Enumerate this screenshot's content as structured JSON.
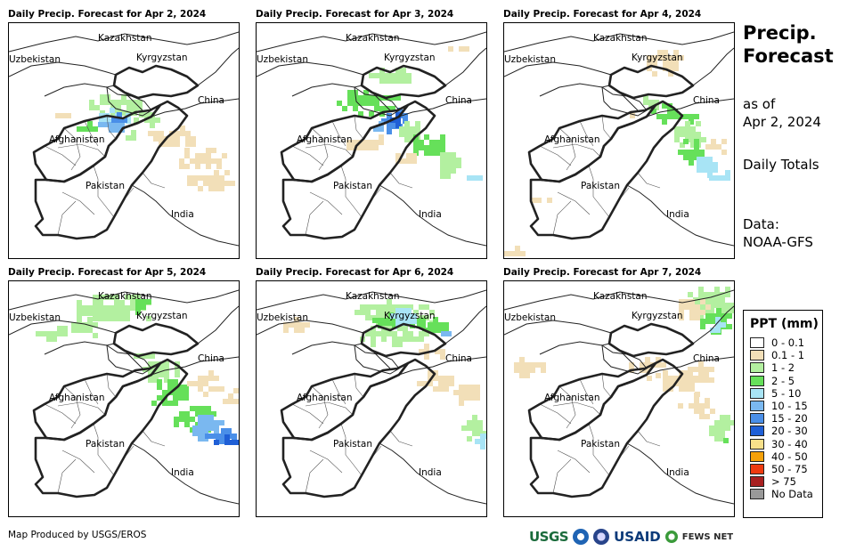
{
  "panels": [
    {
      "title": "Daily Precip. Forecast for Apr 2, 2024",
      "day_index": 0
    },
    {
      "title": "Daily Precip. Forecast for Apr 3, 2024",
      "day_index": 1
    },
    {
      "title": "Daily Precip. Forecast for Apr 4, 2024",
      "day_index": 2
    },
    {
      "title": "Daily Precip. Forecast for Apr 5, 2024",
      "day_index": 3
    },
    {
      "title": "Daily Precip. Forecast for Apr 6, 2024",
      "day_index": 4
    },
    {
      "title": "Daily Precip. Forecast for Apr 7, 2024",
      "day_index": 5
    }
  ],
  "map_labels": {
    "kazakhstan": "Kazakhstan",
    "uzbekistan": "Uzbekistan",
    "kyrgyzstan": "Kyrgyzstan",
    "china": "China",
    "afghanistan": "Afghanistan",
    "pakistan": "Pakistan",
    "india": "India"
  },
  "sidebar": {
    "title_line1": "Precip.",
    "title_line2": "Forecast",
    "as_of_line1": "as of",
    "as_of_line2": "Apr 2, 2024",
    "totals": "Daily Totals",
    "data_line1": "Data:",
    "data_line2": "NOAA-GFS"
  },
  "legend": {
    "title": "PPT (mm)",
    "items": [
      {
        "label": "0 - 0.1",
        "color": "#ffffff"
      },
      {
        "label": "0.1 - 1",
        "color": "#f2dfb8"
      },
      {
        "label": "1 - 2",
        "color": "#b3f0a0"
      },
      {
        "label": "2 - 5",
        "color": "#66e05a"
      },
      {
        "label": "5 - 10",
        "color": "#a8e4f5"
      },
      {
        "label": "10 - 15",
        "color": "#7ab8f0"
      },
      {
        "label": "15 - 20",
        "color": "#4a8fe8"
      },
      {
        "label": "20 - 30",
        "color": "#1f5fd6"
      },
      {
        "label": "30 - 40",
        "color": "#f7e08a"
      },
      {
        "label": "40 - 50",
        "color": "#f5a10a"
      },
      {
        "label": "50 - 75",
        "color": "#ee3b10"
      },
      {
        "label": "> 75",
        "color": "#a82020"
      },
      {
        "label": "No Data",
        "color": "#999999"
      }
    ]
  },
  "footer": {
    "credit": "Map Produced by USGS/EROS",
    "logo_usgs": "USGS",
    "logo_usaid": "USAID",
    "logo_fews": "FEWS NET"
  }
}
